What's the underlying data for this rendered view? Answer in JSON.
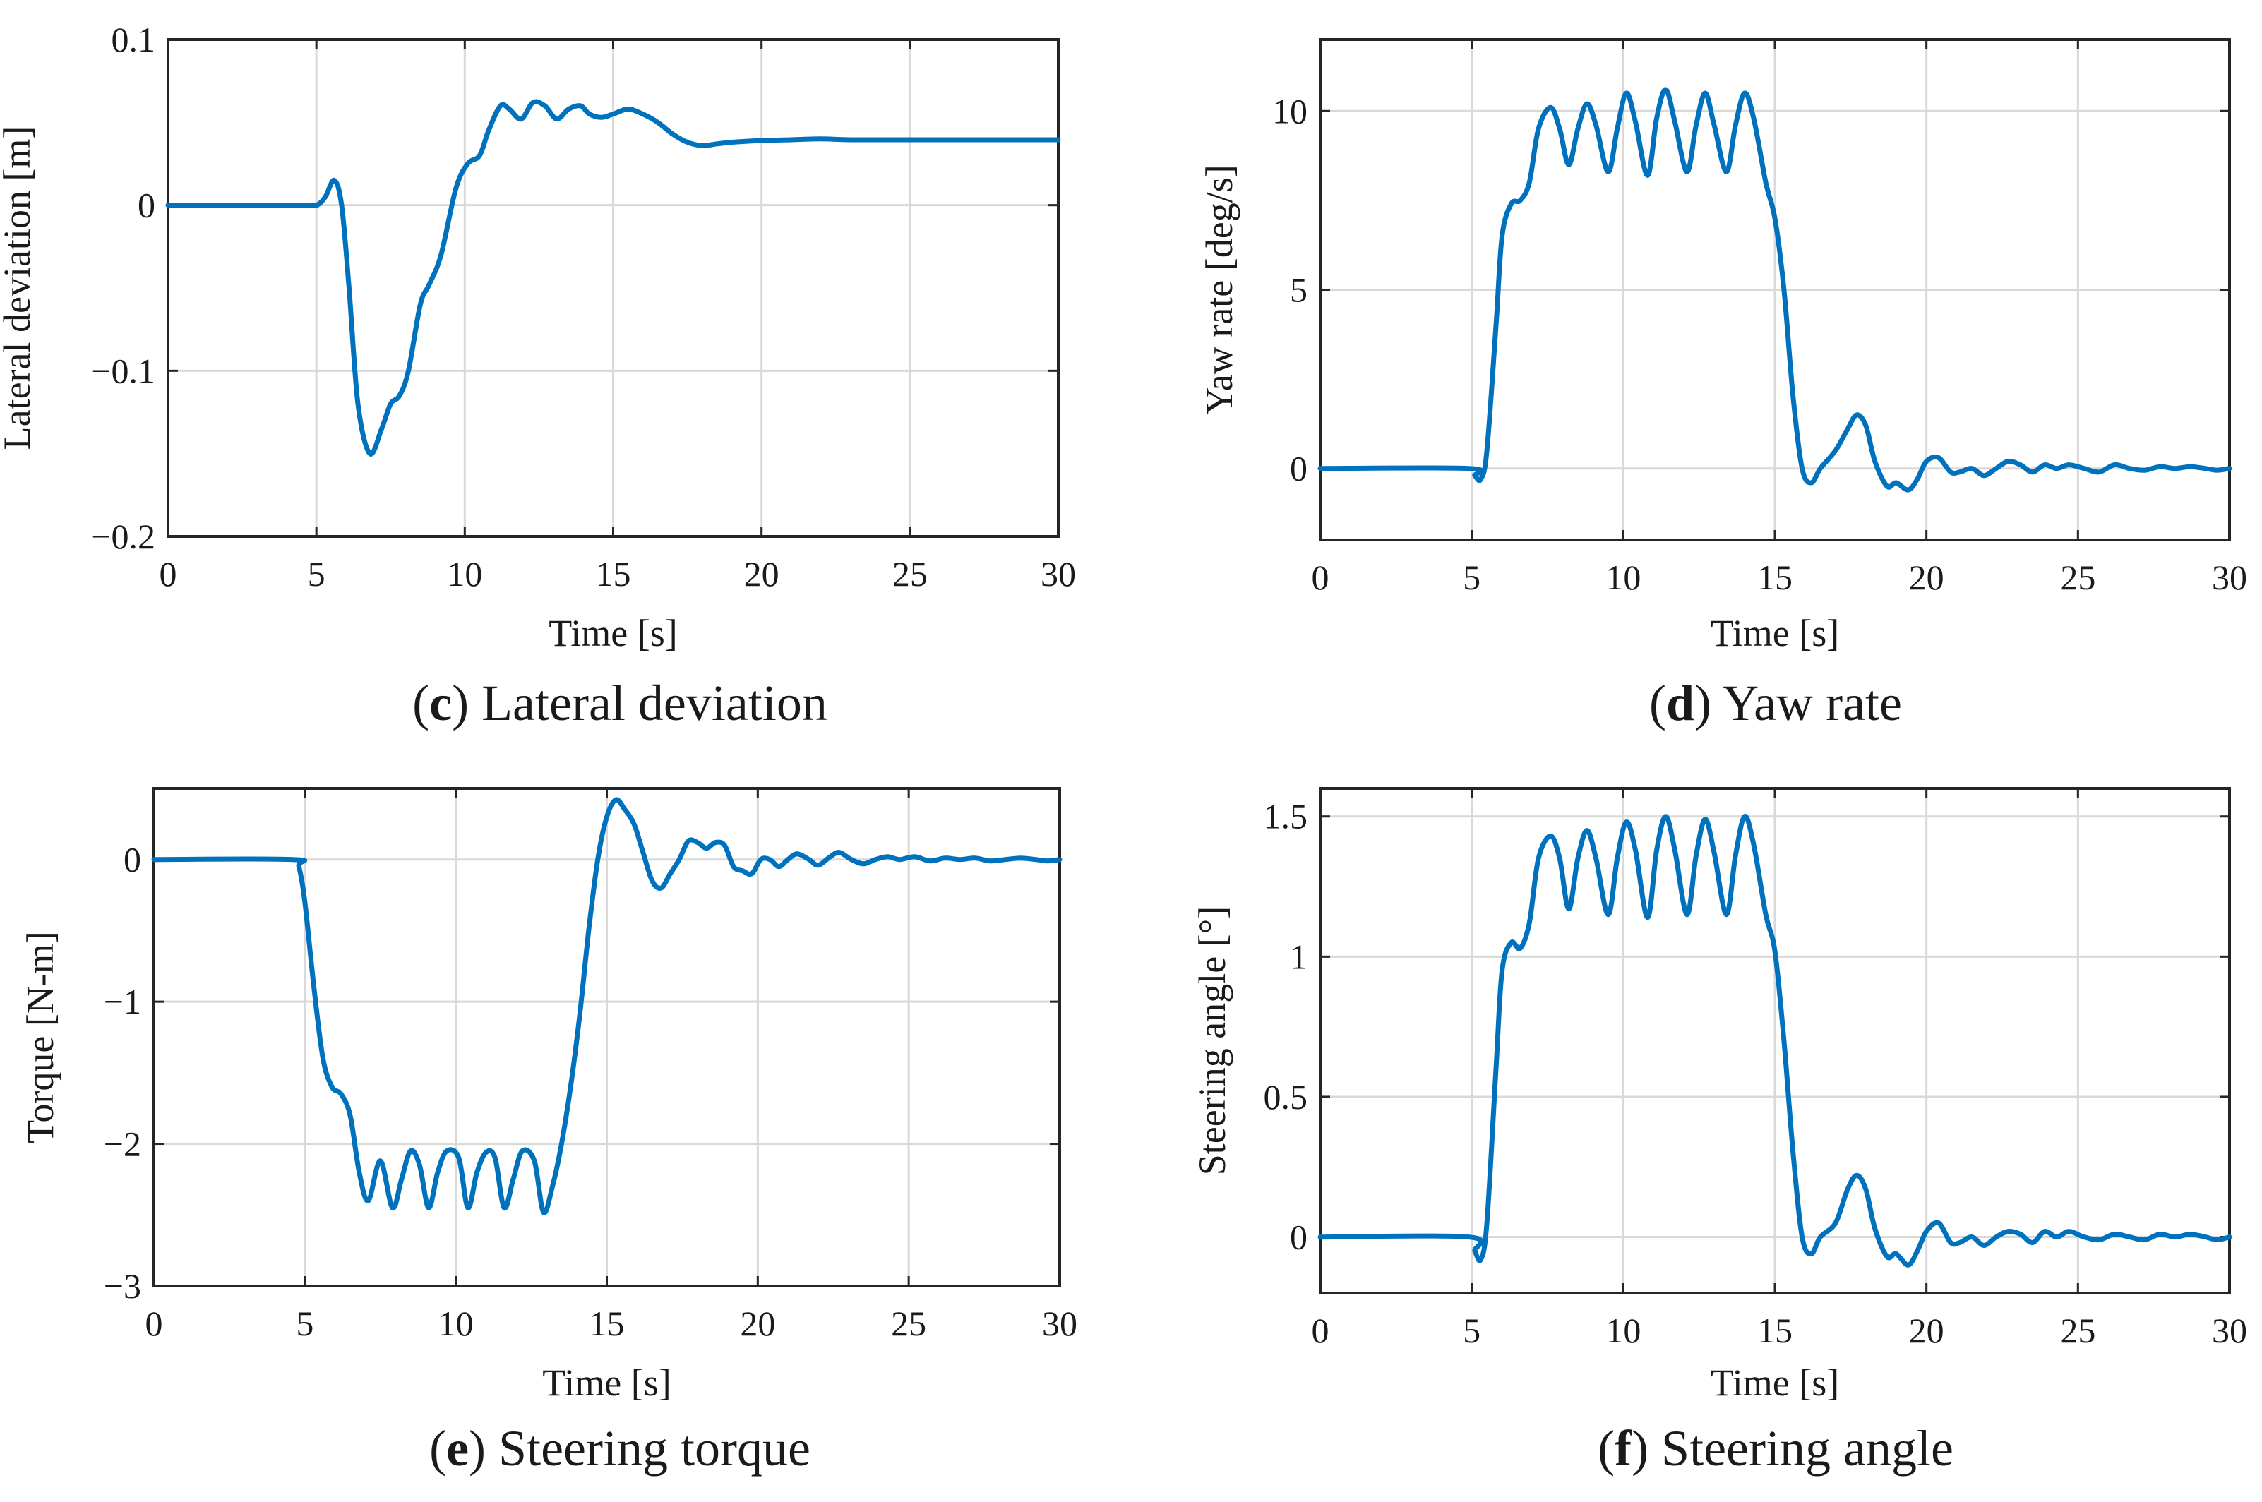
{
  "figure": {
    "panels": [
      {
        "caption_letter": "c",
        "caption_text": "Lateral deviation"
      },
      {
        "caption_letter": "d",
        "caption_text": "Yaw rate"
      },
      {
        "caption_letter": "e",
        "caption_text": "Steering torque"
      },
      {
        "caption_letter": "f",
        "caption_text": "Steering angle"
      }
    ]
  },
  "chart_data": [
    {
      "type": "line",
      "title": "(c) Lateral deviation",
      "xlabel": "Time [s]",
      "ylabel": "Lateral deviation [m]",
      "xlim": [
        0,
        30
      ],
      "ylim": [
        -0.2,
        0.1
      ],
      "xticks": [
        0,
        5,
        10,
        15,
        20,
        25,
        30
      ],
      "yticks": [
        -0.2,
        -0.1,
        0,
        0.1
      ],
      "ytick_labels": [
        "−0.2",
        "−0.1",
        "0",
        "0.1"
      ],
      "grid": true,
      "color": "#0072BD",
      "series": [
        {
          "x": [
            0,
            4.5,
            5.0,
            5.3,
            5.6,
            5.85,
            6.1,
            6.4,
            6.8,
            7.2,
            7.5,
            7.8,
            8.1,
            8.5,
            8.8,
            9.2,
            9.7,
            10.1,
            10.5,
            10.8,
            11.2,
            11.5,
            11.9,
            12.3,
            12.7,
            13.1,
            13.5,
            13.9,
            14.2,
            14.6,
            15.0,
            15.5,
            16.0,
            16.5,
            17.0,
            17.5,
            18.0,
            18.5,
            19.0,
            20.0,
            21.0,
            22.0,
            23.0,
            25.0,
            27.0,
            30.0
          ],
          "y": [
            0,
            0,
            0.0,
            0.005,
            0.015,
            0.0,
            -0.05,
            -0.12,
            -0.15,
            -0.135,
            -0.12,
            -0.115,
            -0.1,
            -0.06,
            -0.048,
            -0.03,
            0.01,
            0.025,
            0.03,
            0.045,
            0.06,
            0.058,
            0.052,
            0.062,
            0.06,
            0.052,
            0.058,
            0.06,
            0.055,
            0.053,
            0.055,
            0.058,
            0.055,
            0.05,
            0.043,
            0.038,
            0.036,
            0.037,
            0.038,
            0.039,
            0.0395,
            0.04,
            0.0395,
            0.0395,
            0.0395,
            0.0395
          ]
        }
      ]
    },
    {
      "type": "line",
      "title": "(d) Yaw rate",
      "xlabel": "Time [s]",
      "ylabel": "Yaw rate [deg/s]",
      "xlim": [
        0,
        30
      ],
      "ylim": [
        -2,
        12
      ],
      "xticks": [
        0,
        5,
        10,
        15,
        20,
        25,
        30
      ],
      "yticks": [
        0,
        5,
        10
      ],
      "ytick_labels": [
        "0",
        "5",
        "10"
      ],
      "grid": true,
      "color": "#0072BD",
      "series": [
        {
          "x": [
            0,
            4.9,
            5.1,
            5.3,
            5.5,
            5.8,
            6.0,
            6.3,
            6.6,
            6.9,
            7.2,
            7.6,
            7.9,
            8.2,
            8.5,
            8.8,
            9.1,
            9.5,
            9.8,
            10.1,
            10.4,
            10.8,
            11.1,
            11.4,
            11.7,
            12.1,
            12.4,
            12.7,
            13.0,
            13.4,
            13.7,
            14.0,
            14.3,
            14.7,
            15.0,
            15.3,
            15.6,
            15.9,
            16.2,
            16.5,
            17.0,
            17.4,
            17.7,
            18.0,
            18.3,
            18.7,
            19.0,
            19.4,
            19.7,
            20.0,
            20.4,
            20.8,
            21.1,
            21.5,
            21.9,
            22.3,
            22.7,
            23.1,
            23.5,
            23.9,
            24.3,
            24.7,
            25.2,
            25.7,
            26.2,
            26.7,
            27.2,
            27.7,
            28.2,
            28.7,
            29.2,
            29.6,
            30.0
          ],
          "y": [
            0,
            0,
            -0.2,
            -0.3,
            0.5,
            4.0,
            6.5,
            7.4,
            7.5,
            8.0,
            9.5,
            10.1,
            9.5,
            8.5,
            9.5,
            10.2,
            9.6,
            8.3,
            9.5,
            10.5,
            9.7,
            8.2,
            9.8,
            10.6,
            9.7,
            8.3,
            9.6,
            10.5,
            9.6,
            8.3,
            9.6,
            10.5,
            9.8,
            8.0,
            7.0,
            5.0,
            2.0,
            0.0,
            -0.4,
            0.0,
            0.5,
            1.1,
            1.5,
            1.2,
            0.2,
            -0.5,
            -0.4,
            -0.6,
            -0.3,
            0.2,
            0.3,
            -0.1,
            -0.1,
            0.0,
            -0.2,
            0.0,
            0.2,
            0.1,
            -0.1,
            0.1,
            0.0,
            0.1,
            0.0,
            -0.1,
            0.1,
            0.0,
            -0.05,
            0.05,
            0.0,
            0.05,
            0.0,
            -0.05,
            0.0
          ]
        }
      ]
    },
    {
      "type": "line",
      "title": "(e) Steering torque",
      "xlabel": "Time [s]",
      "ylabel": "Torque [N-m]",
      "xlim": [
        0,
        30
      ],
      "ylim": [
        -3,
        0.5
      ],
      "xticks": [
        0,
        5,
        10,
        15,
        20,
        25,
        30
      ],
      "yticks": [
        -3,
        -2,
        -1,
        0
      ],
      "ytick_labels": [
        "−3",
        "−2",
        "−1",
        "0"
      ],
      "grid": true,
      "color": "#0072BD",
      "series": [
        {
          "x": [
            0,
            4.6,
            4.8,
            5.0,
            5.3,
            5.6,
            5.9,
            6.2,
            6.5,
            6.8,
            7.1,
            7.5,
            7.9,
            8.2,
            8.5,
            8.8,
            9.1,
            9.4,
            9.7,
            10.1,
            10.4,
            10.7,
            11.0,
            11.3,
            11.6,
            11.9,
            12.2,
            12.6,
            12.9,
            13.2,
            13.5,
            13.8,
            14.1,
            14.4,
            14.7,
            15.0,
            15.3,
            15.6,
            15.9,
            16.2,
            16.5,
            16.8,
            17.1,
            17.4,
            17.7,
            18.0,
            18.3,
            18.6,
            18.9,
            19.2,
            19.5,
            19.8,
            20.1,
            20.4,
            20.7,
            21.0,
            21.3,
            21.7,
            22.0,
            22.4,
            22.7,
            23.1,
            23.5,
            23.9,
            24.3,
            24.7,
            25.2,
            25.7,
            26.2,
            26.7,
            27.2,
            27.7,
            28.2,
            28.7,
            29.2,
            29.6,
            30.0
          ],
          "y": [
            0,
            0,
            -0.05,
            -0.3,
            -0.9,
            -1.4,
            -1.6,
            -1.65,
            -1.8,
            -2.2,
            -2.4,
            -2.12,
            -2.45,
            -2.25,
            -2.05,
            -2.15,
            -2.45,
            -2.2,
            -2.05,
            -2.1,
            -2.45,
            -2.2,
            -2.06,
            -2.1,
            -2.45,
            -2.25,
            -2.05,
            -2.12,
            -2.48,
            -2.3,
            -2.0,
            -1.6,
            -1.1,
            -0.5,
            0.0,
            0.3,
            0.42,
            0.35,
            0.25,
            0.05,
            -0.15,
            -0.2,
            -0.1,
            0.0,
            0.13,
            0.12,
            0.08,
            0.12,
            0.1,
            -0.05,
            -0.08,
            -0.1,
            0.0,
            0.0,
            -0.05,
            0.0,
            0.04,
            0.0,
            -0.04,
            0.02,
            0.05,
            0.0,
            -0.03,
            0.0,
            0.02,
            0.0,
            0.02,
            -0.01,
            0.01,
            0.0,
            0.01,
            -0.01,
            0.0,
            0.01,
            0.0,
            -0.01,
            0.0
          ]
        }
      ]
    },
    {
      "type": "line",
      "title": "(f) Steering angle",
      "xlabel": "Time [s]",
      "ylabel": "Steering angle [°]",
      "xlim": [
        0,
        30
      ],
      "ylim": [
        -0.2,
        1.6
      ],
      "xticks": [
        0,
        5,
        10,
        15,
        20,
        25,
        30
      ],
      "yticks": [
        0,
        0.5,
        1,
        1.5
      ],
      "ytick_labels": [
        "0",
        "0.5",
        "1",
        "1.5"
      ],
      "grid": true,
      "color": "#0072BD",
      "series": [
        {
          "x": [
            0,
            4.9,
            5.1,
            5.3,
            5.5,
            5.8,
            6.0,
            6.3,
            6.6,
            6.9,
            7.2,
            7.6,
            7.9,
            8.2,
            8.5,
            8.8,
            9.1,
            9.5,
            9.8,
            10.1,
            10.4,
            10.8,
            11.1,
            11.4,
            11.7,
            12.1,
            12.4,
            12.7,
            13.0,
            13.4,
            13.7,
            14.0,
            14.3,
            14.7,
            15.0,
            15.3,
            15.6,
            15.9,
            16.2,
            16.5,
            17.0,
            17.4,
            17.7,
            18.0,
            18.3,
            18.7,
            19.0,
            19.4,
            19.7,
            20.0,
            20.4,
            20.8,
            21.1,
            21.5,
            21.9,
            22.3,
            22.7,
            23.1,
            23.5,
            23.9,
            24.3,
            24.7,
            25.2,
            25.7,
            26.2,
            26.7,
            27.2,
            27.7,
            28.2,
            28.7,
            29.2,
            29.6,
            30.0
          ],
          "y": [
            0,
            0,
            -0.05,
            -0.08,
            0.05,
            0.6,
            0.95,
            1.05,
            1.03,
            1.12,
            1.35,
            1.43,
            1.35,
            1.17,
            1.35,
            1.45,
            1.35,
            1.15,
            1.35,
            1.48,
            1.38,
            1.14,
            1.38,
            1.5,
            1.38,
            1.15,
            1.36,
            1.49,
            1.37,
            1.15,
            1.36,
            1.5,
            1.4,
            1.15,
            1.02,
            0.7,
            0.3,
            0.0,
            -0.06,
            0.0,
            0.05,
            0.17,
            0.22,
            0.17,
            0.03,
            -0.07,
            -0.06,
            -0.1,
            -0.05,
            0.02,
            0.05,
            -0.02,
            -0.02,
            0.0,
            -0.03,
            0.0,
            0.02,
            0.01,
            -0.02,
            0.02,
            0.0,
            0.02,
            0.0,
            -0.01,
            0.01,
            0.0,
            -0.01,
            0.01,
            0.0,
            0.01,
            0.0,
            -0.01,
            0.0
          ]
        }
      ]
    }
  ]
}
